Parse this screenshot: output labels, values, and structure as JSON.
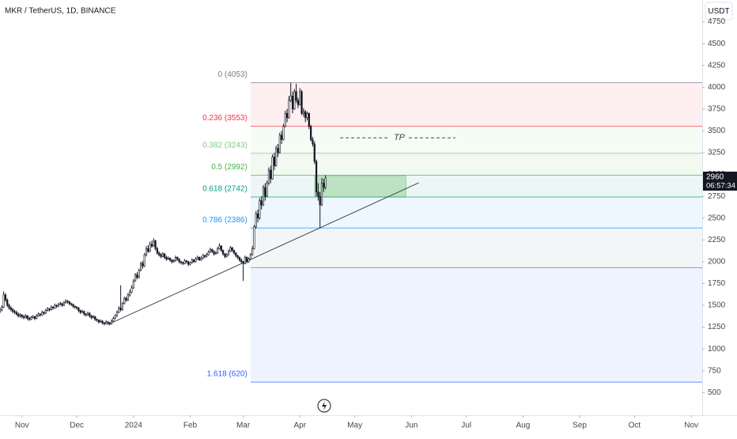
{
  "chart_data": {
    "type": "candlestick",
    "title": "MKR / TetherUS, 1D, BINANCE",
    "currency": "USDT",
    "xlim": [
      -12,
      372
    ],
    "ylim": [
      240,
      5000
    ],
    "xticks": [
      {
        "value": 0,
        "label": "Nov"
      },
      {
        "value": 30,
        "label": "Dec"
      },
      {
        "value": 61,
        "label": "2024"
      },
      {
        "value": 92,
        "label": "Feb"
      },
      {
        "value": 121,
        "label": "Mar"
      },
      {
        "value": 152,
        "label": "Apr"
      },
      {
        "value": 182,
        "label": "May"
      },
      {
        "value": 213,
        "label": "Jun"
      },
      {
        "value": 243,
        "label": "Jul"
      },
      {
        "value": 274,
        "label": "Aug"
      },
      {
        "value": 305,
        "label": "Sep"
      },
      {
        "value": 335,
        "label": "Oct"
      },
      {
        "value": 366,
        "label": "Nov"
      }
    ],
    "yticks": [
      500,
      750,
      1000,
      1250,
      1500,
      1750,
      2000,
      2250,
      2500,
      2750,
      3000,
      3250,
      3500,
      3750,
      4000,
      4250,
      4500,
      4750
    ],
    "up_color": "#ffffff",
    "down_color": "#131722",
    "x": [
      -12,
      -11,
      -10,
      -9,
      -8,
      -7,
      -6,
      -5,
      -4,
      -3,
      -2,
      -1,
      0,
      1,
      2,
      3,
      4,
      5,
      6,
      7,
      8,
      9,
      10,
      11,
      12,
      13,
      14,
      15,
      16,
      17,
      18,
      19,
      20,
      21,
      22,
      23,
      24,
      25,
      26,
      27,
      28,
      29,
      30,
      31,
      32,
      33,
      34,
      35,
      36,
      37,
      38,
      39,
      40,
      41,
      42,
      43,
      44,
      45,
      46,
      47,
      48,
      49,
      50,
      51,
      52,
      53,
      54,
      55,
      56,
      57,
      58,
      59,
      60,
      61,
      62,
      63,
      64,
      65,
      66,
      67,
      68,
      69,
      70,
      71,
      72,
      73,
      74,
      75,
      76,
      77,
      78,
      79,
      80,
      81,
      82,
      83,
      84,
      85,
      86,
      87,
      88,
      89,
      90,
      91,
      92,
      93,
      94,
      95,
      96,
      97,
      98,
      99,
      100,
      101,
      102,
      103,
      104,
      105,
      106,
      107,
      108,
      109,
      110,
      111,
      112,
      113,
      114,
      115,
      116,
      117,
      118,
      119,
      120,
      121,
      122,
      123,
      124,
      125,
      126,
      127,
      128,
      129,
      130,
      131,
      132,
      133,
      134,
      135,
      136,
      137,
      138,
      139,
      140,
      141,
      142,
      143,
      144,
      145,
      146,
      147,
      148,
      149,
      150,
      151,
      152,
      153,
      154,
      155,
      156,
      157,
      158,
      159,
      160,
      161,
      162,
      163,
      164,
      165,
      166
    ],
    "ohlc": [
      [
        1430,
        1470,
        1410,
        1450
      ],
      [
        1450,
        1500,
        1430,
        1480
      ],
      [
        1480,
        1660,
        1470,
        1620
      ],
      [
        1620,
        1640,
        1540,
        1560
      ],
      [
        1560,
        1580,
        1480,
        1500
      ],
      [
        1500,
        1520,
        1450,
        1470
      ],
      [
        1470,
        1490,
        1430,
        1450
      ],
      [
        1450,
        1470,
        1410,
        1430
      ],
      [
        1430,
        1450,
        1400,
        1420
      ],
      [
        1420,
        1440,
        1380,
        1400
      ],
      [
        1400,
        1420,
        1360,
        1380
      ],
      [
        1380,
        1410,
        1360,
        1390
      ],
      [
        1390,
        1400,
        1350,
        1370
      ],
      [
        1370,
        1390,
        1340,
        1360
      ],
      [
        1360,
        1400,
        1350,
        1380
      ],
      [
        1380,
        1390,
        1330,
        1350
      ],
      [
        1350,
        1370,
        1320,
        1340
      ],
      [
        1340,
        1380,
        1330,
        1360
      ],
      [
        1360,
        1390,
        1350,
        1370
      ],
      [
        1370,
        1380,
        1330,
        1350
      ],
      [
        1350,
        1400,
        1340,
        1380
      ],
      [
        1380,
        1420,
        1370,
        1400
      ],
      [
        1400,
        1410,
        1370,
        1390
      ],
      [
        1390,
        1440,
        1380,
        1420
      ],
      [
        1420,
        1430,
        1390,
        1410
      ],
      [
        1410,
        1460,
        1400,
        1440
      ],
      [
        1440,
        1480,
        1430,
        1460
      ],
      [
        1460,
        1470,
        1430,
        1450
      ],
      [
        1450,
        1500,
        1440,
        1480
      ],
      [
        1480,
        1490,
        1450,
        1470
      ],
      [
        1470,
        1520,
        1460,
        1500
      ],
      [
        1500,
        1510,
        1470,
        1490
      ],
      [
        1490,
        1530,
        1480,
        1510
      ],
      [
        1510,
        1540,
        1500,
        1520
      ],
      [
        1520,
        1530,
        1480,
        1500
      ],
      [
        1500,
        1550,
        1490,
        1530
      ],
      [
        1530,
        1570,
        1520,
        1550
      ],
      [
        1550,
        1560,
        1520,
        1540
      ],
      [
        1540,
        1550,
        1500,
        1520
      ],
      [
        1520,
        1530,
        1490,
        1510
      ],
      [
        1510,
        1520,
        1470,
        1490
      ],
      [
        1490,
        1500,
        1460,
        1480
      ],
      [
        1480,
        1490,
        1450,
        1470
      ],
      [
        1470,
        1480,
        1420,
        1440
      ],
      [
        1440,
        1450,
        1400,
        1420
      ],
      [
        1420,
        1450,
        1410,
        1430
      ],
      [
        1430,
        1440,
        1380,
        1400
      ],
      [
        1400,
        1410,
        1370,
        1390
      ],
      [
        1390,
        1430,
        1380,
        1410
      ],
      [
        1410,
        1420,
        1360,
        1380
      ],
      [
        1380,
        1390,
        1340,
        1360
      ],
      [
        1360,
        1390,
        1350,
        1370
      ],
      [
        1370,
        1380,
        1320,
        1340
      ],
      [
        1340,
        1350,
        1310,
        1330
      ],
      [
        1330,
        1340,
        1290,
        1310
      ],
      [
        1310,
        1340,
        1300,
        1320
      ],
      [
        1320,
        1330,
        1280,
        1300
      ],
      [
        1300,
        1310,
        1270,
        1290
      ],
      [
        1290,
        1330,
        1280,
        1310
      ],
      [
        1310,
        1320,
        1280,
        1300
      ],
      [
        1300,
        1310,
        1270,
        1290
      ],
      [
        1290,
        1340,
        1280,
        1320
      ],
      [
        1320,
        1370,
        1310,
        1350
      ],
      [
        1350,
        1400,
        1340,
        1380
      ],
      [
        1380,
        1440,
        1370,
        1420
      ],
      [
        1420,
        1490,
        1410,
        1470
      ],
      [
        1470,
        1730,
        1430,
        1450
      ],
      [
        1450,
        1540,
        1440,
        1520
      ],
      [
        1520,
        1600,
        1510,
        1580
      ],
      [
        1580,
        1600,
        1540,
        1560
      ],
      [
        1560,
        1640,
        1550,
        1620
      ],
      [
        1620,
        1680,
        1600,
        1650
      ],
      [
        1650,
        1730,
        1640,
        1700
      ],
      [
        1700,
        1800,
        1690,
        1780
      ],
      [
        1780,
        1870,
        1770,
        1850
      ],
      [
        1850,
        1880,
        1800,
        1820
      ],
      [
        1820,
        1920,
        1810,
        1900
      ],
      [
        1900,
        2000,
        1890,
        1980
      ],
      [
        1980,
        2010,
        1920,
        1950
      ],
      [
        1950,
        2100,
        1940,
        2080
      ],
      [
        2080,
        2180,
        2060,
        2150
      ],
      [
        2150,
        2190,
        2100,
        2120
      ],
      [
        2120,
        2230,
        2110,
        2200
      ],
      [
        2200,
        2240,
        2160,
        2180
      ],
      [
        2180,
        2270,
        2170,
        2240
      ],
      [
        2240,
        2250,
        2130,
        2150
      ],
      [
        2150,
        2170,
        2080,
        2100
      ],
      [
        2100,
        2120,
        2060,
        2080
      ],
      [
        2080,
        2100,
        2040,
        2060
      ],
      [
        2060,
        2110,
        2050,
        2090
      ],
      [
        2090,
        2100,
        2030,
        2050
      ],
      [
        2050,
        2070,
        2010,
        2030
      ],
      [
        2030,
        2060,
        2020,
        2040
      ],
      [
        2040,
        2050,
        2000,
        2020
      ],
      [
        2020,
        2030,
        1980,
        2000
      ],
      [
        2000,
        2030,
        1990,
        2010
      ],
      [
        2010,
        2070,
        2000,
        2050
      ],
      [
        2050,
        2060,
        2010,
        2030
      ],
      [
        2030,
        2040,
        1980,
        2000
      ],
      [
        2000,
        2010,
        1970,
        1990
      ],
      [
        1990,
        2000,
        1960,
        1980
      ],
      [
        1980,
        2030,
        1970,
        2010
      ],
      [
        2010,
        2020,
        1980,
        2000
      ],
      [
        2000,
        2010,
        1950,
        1970
      ],
      [
        1970,
        2000,
        1960,
        1990
      ],
      [
        1990,
        2040,
        1980,
        2020
      ],
      [
        2020,
        2030,
        1990,
        2000
      ],
      [
        2000,
        2050,
        1990,
        2030
      ],
      [
        2030,
        2070,
        2020,
        2050
      ],
      [
        2050,
        2060,
        2010,
        2020
      ],
      [
        2020,
        2060,
        2010,
        2040
      ],
      [
        2040,
        2090,
        2030,
        2070
      ],
      [
        2070,
        2080,
        2040,
        2060
      ],
      [
        2060,
        2100,
        2050,
        2080
      ],
      [
        2080,
        2130,
        2070,
        2110
      ],
      [
        2110,
        2160,
        2100,
        2140
      ],
      [
        2140,
        2150,
        2100,
        2120
      ],
      [
        2120,
        2130,
        2070,
        2090
      ],
      [
        2090,
        2120,
        2080,
        2100
      ],
      [
        2100,
        2170,
        2090,
        2150
      ],
      [
        2150,
        2210,
        2140,
        2180
      ],
      [
        2180,
        2190,
        2110,
        2130
      ],
      [
        2130,
        2140,
        2070,
        2090
      ],
      [
        2090,
        2100,
        2040,
        2060
      ],
      [
        2060,
        2100,
        2050,
        2080
      ],
      [
        2080,
        2140,
        2070,
        2120
      ],
      [
        2120,
        2180,
        2110,
        2160
      ],
      [
        2160,
        2170,
        2110,
        2130
      ],
      [
        2130,
        2140,
        2080,
        2100
      ],
      [
        2100,
        2110,
        2050,
        2070
      ],
      [
        2070,
        2080,
        2030,
        2050
      ],
      [
        2050,
        2060,
        2000,
        2020
      ],
      [
        2020,
        2040,
        1980,
        2000
      ],
      [
        2000,
        2010,
        1780,
        1980
      ],
      [
        1980,
        2070,
        1970,
        2050
      ],
      [
        2050,
        2060,
        1980,
        2000
      ],
      [
        2000,
        2050,
        1990,
        2030
      ],
      [
        2030,
        2100,
        2020,
        2080
      ],
      [
        2080,
        2180,
        2070,
        2150
      ],
      [
        2150,
        2420,
        2140,
        2400
      ],
      [
        2400,
        2580,
        2380,
        2550
      ],
      [
        2550,
        2600,
        2450,
        2500
      ],
      [
        2500,
        2730,
        2480,
        2700
      ],
      [
        2700,
        2750,
        2600,
        2650
      ],
      [
        2650,
        2880,
        2640,
        2850
      ],
      [
        2850,
        2900,
        2700,
        2750
      ],
      [
        2750,
        2930,
        2740,
        2900
      ],
      [
        2900,
        3080,
        2880,
        3050
      ],
      [
        3050,
        3100,
        2900,
        2950
      ],
      [
        2950,
        3230,
        2940,
        3200
      ],
      [
        3200,
        3250,
        3050,
        3100
      ],
      [
        3100,
        3330,
        3090,
        3300
      ],
      [
        3300,
        3350,
        3200,
        3250
      ],
      [
        3250,
        3480,
        3240,
        3450
      ],
      [
        3450,
        3500,
        3350,
        3400
      ],
      [
        3400,
        3580,
        3390,
        3550
      ],
      [
        3550,
        3730,
        3540,
        3700
      ],
      [
        3700,
        3750,
        3600,
        3650
      ],
      [
        3650,
        3900,
        3640,
        3850
      ],
      [
        3850,
        4053,
        3830,
        3900
      ],
      [
        3900,
        3950,
        3700,
        3750
      ],
      [
        3750,
        3980,
        3740,
        3950
      ],
      [
        3950,
        4040,
        3820,
        3850
      ],
      [
        3850,
        3880,
        3760,
        3800
      ],
      [
        3800,
        3990,
        3790,
        3950
      ],
      [
        3950,
        3970,
        3680,
        3700
      ],
      [
        3700,
        3760,
        3660,
        3720
      ],
      [
        3720,
        3740,
        3600,
        3650
      ],
      [
        3650,
        3720,
        3620,
        3700
      ],
      [
        3700,
        3710,
        3520,
        3550
      ],
      [
        3550,
        3570,
        3380,
        3400
      ],
      [
        3400,
        3430,
        3320,
        3350
      ],
      [
        3350,
        3380,
        3120,
        3150
      ],
      [
        3150,
        3170,
        2750,
        2800
      ],
      [
        2800,
        2900,
        2700,
        2750
      ],
      [
        2750,
        2800,
        2386,
        2650
      ],
      [
        2650,
        2960,
        2640,
        2900
      ],
      [
        2900,
        2950,
        2800,
        2850
      ],
      [
        2850,
        2990,
        2830,
        2960
      ]
    ],
    "fib": {
      "x_start": 125,
      "levels": [
        {
          "value": 4053,
          "label": "0 (4053)",
          "color": "#787b86"
        },
        {
          "value": 3553,
          "label": "0.236 (3553)",
          "color": "#f23645"
        },
        {
          "value": 3243,
          "label": "0.382 (3243)",
          "color": "#81c784"
        },
        {
          "value": 2992,
          "label": "0.5 (2992)",
          "color": "#4caf50"
        },
        {
          "value": 2742,
          "label": "0.618 (2742)",
          "color": "#089981"
        },
        {
          "value": 2386,
          "label": "0.786 (2386)",
          "color": "#2196f3"
        },
        {
          "value": 1932,
          "label": null,
          "color": "#787b86"
        },
        {
          "value": 620,
          "label": "1.618 (620)",
          "color": "#2962ff"
        }
      ]
    },
    "trendline": {
      "x": [
        47,
        217
      ],
      "y": [
        1280,
        2905
      ],
      "color": "#434651"
    },
    "zone": {
      "x": [
        160,
        210
      ],
      "y": [
        2740,
        2985
      ],
      "color": "#4caf50"
    },
    "tp": {
      "label": "TP",
      "x": [
        174,
        237
      ],
      "y": 3420,
      "color": "#434651"
    },
    "last_price": 2960,
    "countdown": "06:57:34"
  }
}
